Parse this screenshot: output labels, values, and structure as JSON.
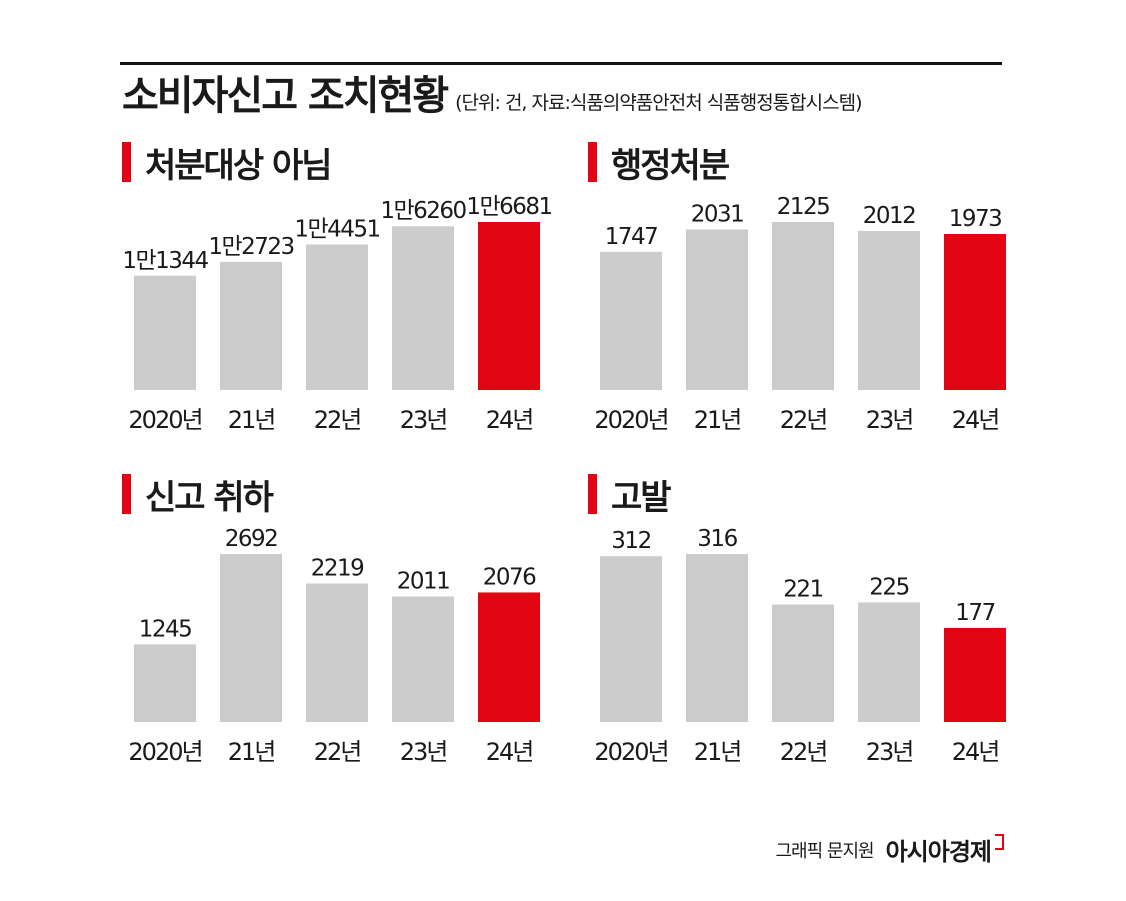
{
  "header": {
    "title": "소비자신고 조치현황",
    "subtitle": "(단위: 건, 자료:식품의약품안전처 식품행정통합시스템)"
  },
  "colors": {
    "bar": "#cccccc",
    "highlight": "#e10514",
    "text": "#1a1a1a"
  },
  "chart_data": [
    {
      "type": "bar",
      "title": "처분대상 아님",
      "categories": [
        "2020년",
        "21년",
        "22년",
        "23년",
        "24년"
      ],
      "values": [
        11344,
        12723,
        14451,
        16260,
        16681
      ],
      "value_labels": [
        "1만1344",
        "1만2723",
        "1만4451",
        "1만6260",
        "1만6681"
      ],
      "highlight_index": 4,
      "xlabel": "",
      "ylabel": ""
    },
    {
      "type": "bar",
      "title": "행정처분",
      "categories": [
        "2020년",
        "21년",
        "22년",
        "23년",
        "24년"
      ],
      "values": [
        1747,
        2031,
        2125,
        2012,
        1973
      ],
      "value_labels": [
        "1747",
        "2031",
        "2125",
        "2012",
        "1973"
      ],
      "highlight_index": 4,
      "xlabel": "",
      "ylabel": ""
    },
    {
      "type": "bar",
      "title": "신고 취하",
      "categories": [
        "2020년",
        "21년",
        "22년",
        "23년",
        "24년"
      ],
      "values": [
        1245,
        2692,
        2219,
        2011,
        2076
      ],
      "value_labels": [
        "1245",
        "2692",
        "2219",
        "2011",
        "2076"
      ],
      "highlight_index": 4,
      "xlabel": "",
      "ylabel": ""
    },
    {
      "type": "bar",
      "title": "고발",
      "categories": [
        "2020년",
        "21년",
        "22년",
        "23년",
        "24년"
      ],
      "values": [
        312,
        316,
        221,
        225,
        177
      ],
      "value_labels": [
        "312",
        "316",
        "221",
        "225",
        "177"
      ],
      "highlight_index": 4,
      "xlabel": "",
      "ylabel": ""
    }
  ],
  "footer": {
    "credit": "그래픽 문지원",
    "brand": "아시아경제"
  }
}
